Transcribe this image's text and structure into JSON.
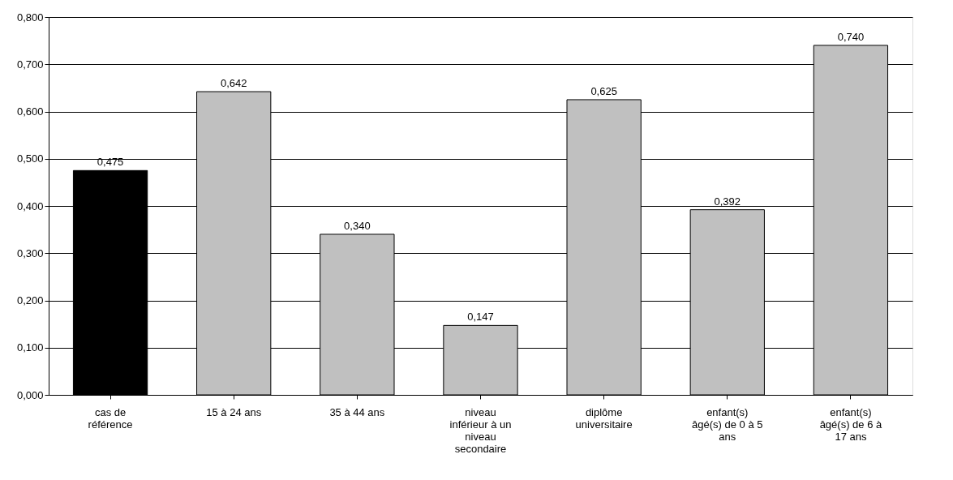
{
  "chart_data": {
    "type": "bar",
    "categories": [
      "cas de référence",
      "15 à 24 ans",
      "35 à 44 ans",
      "niveau inférieur à un niveau secondaire",
      "diplôme universitaire",
      "enfant(s) âgé(s) de 0 à 5 ans",
      "enfant(s) âgé(s) de 6 à 17 ans"
    ],
    "values": [
      0.475,
      0.642,
      0.34,
      0.147,
      0.625,
      0.392,
      0.74
    ],
    "colors": [
      "#000000",
      "#c0c0c0",
      "#c0c0c0",
      "#c0c0c0",
      "#c0c0c0",
      "#c0c0c0",
      "#c0c0c0"
    ],
    "value_labels": [
      "0,475",
      "0,642",
      "0,340",
      "0,147",
      "0,625",
      "0,392",
      "0,740"
    ],
    "ylim": [
      0,
      0.8
    ],
    "yticks": [
      {
        "value": 0,
        "label": "0,000"
      },
      {
        "value": 0.1,
        "label": "0,100"
      },
      {
        "value": 0.2,
        "label": "0,200"
      },
      {
        "value": 0.3,
        "label": "0,300"
      },
      {
        "value": 0.4,
        "label": "0,400"
      },
      {
        "value": 0.5,
        "label": "0,500"
      },
      {
        "value": 0.6,
        "label": "0,600"
      },
      {
        "value": 0.7,
        "label": "0,700"
      },
      {
        "value": 0.8,
        "label": "0,800"
      }
    ],
    "grid": "y"
  }
}
